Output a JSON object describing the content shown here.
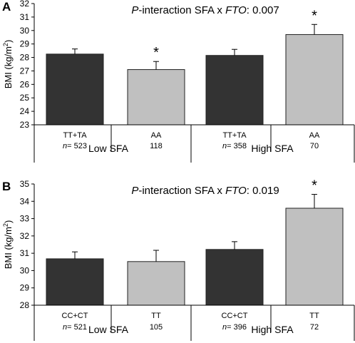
{
  "chart_data": [
    {
      "panel_label": "A",
      "type": "bar",
      "title_parts": [
        "P",
        "-interaction SFA x ",
        "FTO",
        ": 0.007"
      ],
      "ylabel": "BMI (kg/m",
      "ylabel_sup": "2",
      "ylabel_close": ")",
      "ylim": [
        23,
        32
      ],
      "yticks": [
        23,
        24,
        25,
        26,
        27,
        28,
        29,
        30,
        31,
        32
      ],
      "categories": [
        "TT+TA",
        "AA",
        "TT+TA",
        "AA"
      ],
      "n_values": [
        "523",
        "118",
        "358",
        "70"
      ],
      "n_prefix": "n",
      "n_sep": "= ",
      "values": [
        28.25,
        27.1,
        28.15,
        29.7
      ],
      "errors": [
        0.38,
        0.6,
        0.45,
        0.75
      ],
      "colors": [
        "#333333",
        "#c0c0c0",
        "#333333",
        "#c0c0c0"
      ],
      "asterisks": [
        false,
        true,
        false,
        true
      ],
      "asterisk_text": "*",
      "groups": [
        "Low SFA",
        "High SFA"
      ]
    },
    {
      "panel_label": "B",
      "type": "bar",
      "title_parts": [
        "P",
        "-interaction SFA x ",
        "FTO",
        ": 0.019"
      ],
      "ylabel": "BMI (kg/m",
      "ylabel_sup": "2",
      "ylabel_close": ")",
      "ylim": [
        28,
        35
      ],
      "yticks": [
        28,
        29,
        30,
        31,
        32,
        33,
        34,
        35
      ],
      "categories": [
        "CC+CT",
        "TT",
        "CC+CT",
        "TT"
      ],
      "n_values": [
        "521",
        "105",
        "396",
        "72"
      ],
      "n_prefix": "n",
      "n_sep": "= ",
      "values": [
        30.68,
        30.52,
        31.22,
        33.6
      ],
      "errors": [
        0.4,
        0.65,
        0.45,
        0.8
      ],
      "colors": [
        "#333333",
        "#c0c0c0",
        "#333333",
        "#c0c0c0"
      ],
      "asterisks": [
        false,
        false,
        false,
        true
      ],
      "asterisk_text": "*",
      "groups": [
        "Low SFA",
        "High SFA"
      ]
    }
  ]
}
